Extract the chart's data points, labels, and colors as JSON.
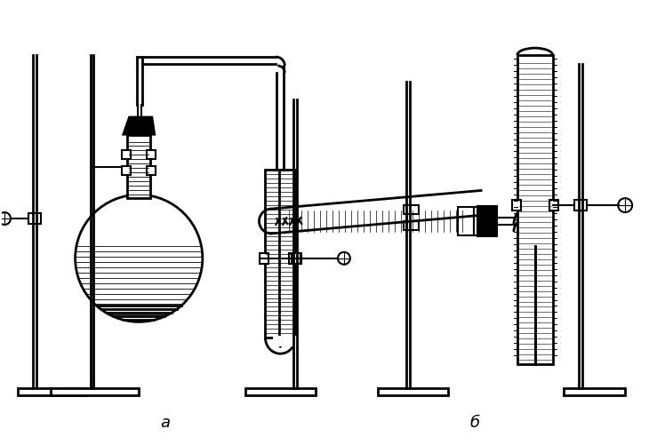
{
  "background_color": "#ffffff",
  "line_color": "#000000",
  "label_a": "a",
  "label_b": "б",
  "label_fontsize": 13,
  "fig_width": 7.48,
  "fig_height": 5.02,
  "dpi": 100
}
